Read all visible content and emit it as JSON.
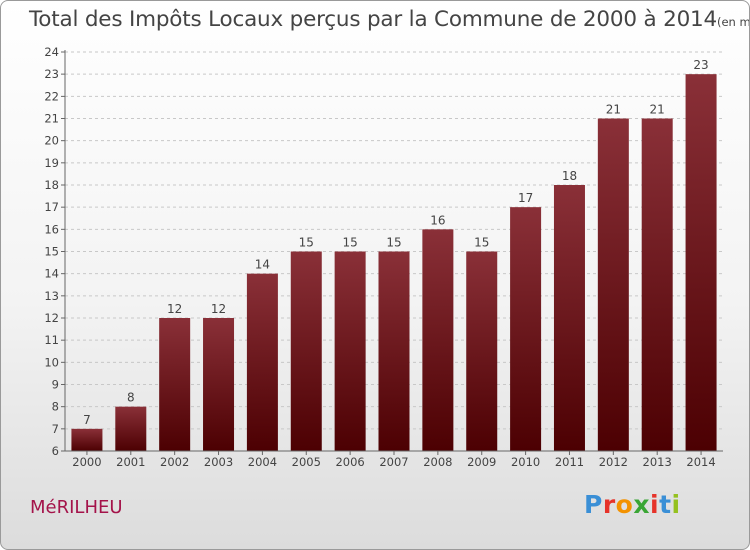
{
  "title": "Total des Impôts Locaux perçus par la Commune de 2000 à 2014",
  "title_unit": "(en milliers d'€)",
  "commune": "MéRILHEU",
  "logo": {
    "letters": [
      "P",
      "r",
      "o",
      "x",
      "i",
      "t",
      "i"
    ],
    "colors": [
      "#3a8fd6",
      "#e6332a",
      "#f39200",
      "#3aa635",
      "#e6332a",
      "#3a8fd6",
      "#95c11f"
    ]
  },
  "colors": {
    "bar_top": "#8a3038",
    "bar_bottom": "#4c0002",
    "commune": "#a4134a"
  },
  "chart_data": {
    "type": "bar",
    "title": "Total des Impôts Locaux perçus par la Commune de 2000 à 2014",
    "xlabel": "",
    "ylabel": "",
    "categories": [
      "2000",
      "2001",
      "2002",
      "2003",
      "2004",
      "2005",
      "2006",
      "2007",
      "2008",
      "2009",
      "2010",
      "2011",
      "2012",
      "2013",
      "2014"
    ],
    "values": [
      7,
      8,
      12,
      12,
      14,
      15,
      15,
      15,
      16,
      15,
      17,
      18,
      21,
      21,
      23
    ],
    "ylim": [
      6,
      24
    ],
    "yticks": [
      6,
      7,
      8,
      9,
      10,
      11,
      12,
      13,
      14,
      15,
      16,
      17,
      18,
      19,
      20,
      21,
      22,
      23,
      24
    ],
    "grid": "horizontal dashed"
  }
}
